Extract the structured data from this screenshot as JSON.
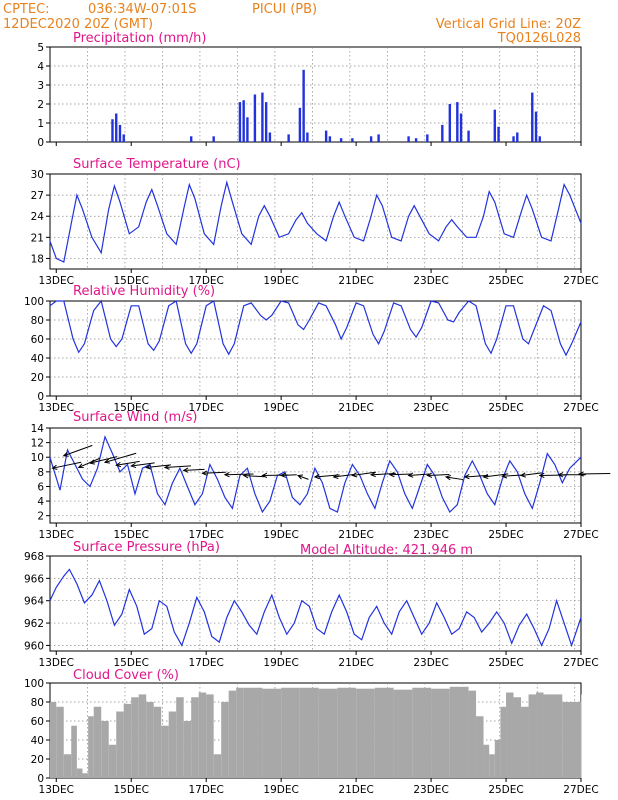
{
  "header": {
    "source": "CPTEC:",
    "coords": "036:34W-07:01S",
    "station": "PICUI (PB)",
    "init_time": "12DEC2020 20Z (GMT)",
    "grid_note": "Vertical Grid Line: 20Z",
    "model_code": "TQ0126L028",
    "model_altitude": "Model Altitude: 421.946 m"
  },
  "colors": {
    "header": "#e8821f",
    "title": "#e0168a",
    "line": "#2233dd",
    "bar": "#2233dd",
    "cloud": "#a8a8a8",
    "arrow": "#000000"
  },
  "x_axis": {
    "start_day": 12.833,
    "end_day": 27.0,
    "tick_days": [
      13,
      15,
      17,
      19,
      21,
      23,
      25,
      27
    ],
    "tick_labels": [
      "13DEC",
      "15DEC",
      "17DEC",
      "19DEC",
      "21DEC",
      "23DEC",
      "25DEC",
      "27DEC"
    ],
    "grid_days": [
      12.833,
      13.833,
      14.833,
      15.833,
      16.833,
      17.833,
      18.833,
      19.833,
      20.833,
      21.833,
      22.833,
      23.833,
      24.833,
      25.833,
      26.833
    ]
  },
  "chart_data": [
    {
      "id": "precip",
      "type": "bar",
      "title": "Precipitation (mm/h)",
      "ylim": [
        0,
        5
      ],
      "yticks": [
        0,
        1,
        2,
        3,
        4,
        5
      ],
      "x": [
        14.5,
        14.6,
        14.7,
        14.8,
        16.6,
        17.2,
        17.9,
        18.0,
        18.1,
        18.3,
        18.5,
        18.6,
        18.7,
        19.2,
        19.5,
        19.6,
        19.7,
        20.2,
        20.3,
        20.6,
        20.9,
        21.4,
        21.6,
        22.4,
        22.6,
        22.9,
        23.3,
        23.5,
        23.7,
        23.8,
        24.0,
        24.7,
        24.8,
        25.2,
        25.3,
        25.7,
        25.8,
        25.9
      ],
      "values": [
        1.2,
        1.5,
        0.9,
        0.4,
        0.3,
        0.3,
        2.1,
        2.2,
        1.3,
        2.5,
        2.6,
        2.1,
        0.5,
        0.4,
        1.8,
        3.8,
        0.5,
        0.6,
        0.3,
        0.2,
        0.2,
        0.3,
        0.4,
        0.3,
        0.2,
        0.4,
        0.9,
        2.0,
        2.1,
        1.5,
        0.6,
        1.7,
        0.8,
        0.3,
        0.5,
        2.6,
        1.6,
        0.3
      ]
    },
    {
      "id": "temp",
      "type": "line",
      "title": "Surface Temperature (nC)",
      "ylim": [
        16.5,
        30
      ],
      "yticks": [
        18,
        21,
        24,
        27,
        30
      ],
      "x": [
        12.83,
        13.0,
        13.2,
        13.4,
        13.55,
        13.7,
        13.95,
        14.2,
        14.4,
        14.55,
        14.7,
        14.95,
        15.2,
        15.4,
        15.55,
        15.7,
        15.95,
        16.2,
        16.4,
        16.55,
        16.7,
        16.95,
        17.2,
        17.4,
        17.55,
        17.7,
        17.95,
        18.2,
        18.4,
        18.55,
        18.7,
        18.95,
        19.2,
        19.4,
        19.55,
        19.7,
        19.95,
        20.2,
        20.4,
        20.55,
        20.7,
        20.95,
        21.2,
        21.4,
        21.55,
        21.7,
        21.95,
        22.2,
        22.4,
        22.55,
        22.7,
        22.95,
        23.2,
        23.4,
        23.55,
        23.7,
        23.95,
        24.2,
        24.4,
        24.55,
        24.7,
        24.95,
        25.2,
        25.4,
        25.55,
        25.7,
        25.95,
        26.2,
        26.4,
        26.55,
        26.7,
        27.0
      ],
      "values": [
        20.5,
        18.0,
        17.5,
        23.0,
        27.0,
        25.0,
        21.0,
        18.8,
        25.0,
        28.3,
        26.0,
        21.5,
        22.5,
        26.0,
        27.8,
        25.5,
        21.5,
        20.0,
        25.0,
        28.5,
        26.5,
        21.5,
        20.0,
        25.5,
        28.8,
        26.0,
        21.5,
        20.0,
        24.0,
        25.5,
        24.0,
        21.0,
        21.5,
        23.5,
        24.5,
        23.0,
        21.5,
        20.5,
        24.0,
        26.0,
        24.0,
        21.0,
        20.5,
        24.0,
        27.0,
        25.5,
        21.0,
        20.5,
        24.0,
        25.5,
        24.0,
        21.5,
        20.5,
        22.5,
        23.5,
        22.5,
        21.0,
        21.0,
        24.0,
        27.5,
        26.0,
        21.5,
        21.0,
        24.5,
        27.0,
        25.0,
        21.0,
        20.5,
        25.0,
        28.5,
        27.0,
        23.0
      ]
    },
    {
      "id": "rh",
      "type": "line",
      "title": "Relative Humidity (%)",
      "ylim": [
        0,
        100
      ],
      "yticks": [
        0,
        20,
        40,
        60,
        80,
        100
      ],
      "x": [
        12.83,
        13.0,
        13.2,
        13.45,
        13.6,
        13.75,
        14.0,
        14.2,
        14.45,
        14.6,
        14.75,
        15.0,
        15.2,
        15.45,
        15.6,
        15.75,
        16.0,
        16.2,
        16.45,
        16.6,
        16.75,
        17.0,
        17.2,
        17.45,
        17.6,
        17.75,
        18.0,
        18.2,
        18.45,
        18.6,
        18.75,
        19.0,
        19.2,
        19.45,
        19.6,
        19.75,
        20.0,
        20.2,
        20.45,
        20.6,
        20.75,
        21.0,
        21.2,
        21.45,
        21.6,
        21.75,
        22.0,
        22.2,
        22.45,
        22.6,
        22.75,
        23.0,
        23.2,
        23.45,
        23.6,
        23.75,
        24.0,
        24.2,
        24.45,
        24.6,
        24.75,
        25.0,
        25.2,
        25.45,
        25.6,
        25.75,
        26.0,
        26.2,
        26.45,
        26.6,
        26.75,
        27.0
      ],
      "values": [
        95,
        100,
        100,
        60,
        46,
        55,
        90,
        100,
        60,
        52,
        60,
        95,
        95,
        55,
        48,
        58,
        95,
        100,
        55,
        45,
        55,
        95,
        100,
        55,
        44,
        55,
        95,
        98,
        85,
        80,
        85,
        100,
        98,
        75,
        70,
        80,
        98,
        95,
        75,
        60,
        72,
        98,
        95,
        65,
        55,
        68,
        98,
        95,
        70,
        62,
        72,
        100,
        98,
        80,
        78,
        88,
        100,
        95,
        55,
        45,
        60,
        95,
        95,
        60,
        55,
        70,
        95,
        90,
        55,
        43,
        55,
        78
      ]
    },
    {
      "id": "wind",
      "type": "line",
      "title": "Surface Wind (m/s)",
      "ylim": [
        1,
        14
      ],
      "yticks": [
        2,
        4,
        6,
        8,
        10,
        12,
        14
      ],
      "x": [
        12.83,
        12.95,
        13.1,
        13.3,
        13.5,
        13.7,
        13.9,
        14.1,
        14.3,
        14.5,
        14.7,
        14.9,
        15.1,
        15.3,
        15.5,
        15.7,
        15.9,
        16.1,
        16.3,
        16.5,
        16.7,
        16.9,
        17.1,
        17.3,
        17.5,
        17.7,
        17.9,
        18.1,
        18.3,
        18.5,
        18.7,
        18.9,
        19.1,
        19.3,
        19.5,
        19.7,
        19.9,
        20.1,
        20.3,
        20.5,
        20.7,
        20.9,
        21.1,
        21.3,
        21.5,
        21.7,
        21.9,
        22.1,
        22.3,
        22.5,
        22.7,
        22.9,
        23.1,
        23.3,
        23.5,
        23.7,
        23.9,
        24.1,
        24.3,
        24.5,
        24.7,
        24.9,
        25.1,
        25.3,
        25.5,
        25.7,
        25.9,
        26.1,
        26.3,
        26.5,
        26.7,
        27.0
      ],
      "values": [
        10.0,
        8.0,
        5.5,
        11.0,
        9.0,
        7.0,
        6.0,
        8.5,
        12.8,
        10.5,
        8.0,
        9.0,
        5.0,
        8.5,
        9.0,
        5.0,
        3.5,
        6.5,
        8.5,
        6.0,
        3.5,
        5.0,
        9.0,
        7.0,
        4.5,
        3.0,
        7.5,
        8.5,
        5.0,
        2.5,
        4.0,
        7.5,
        8.0,
        4.5,
        3.5,
        5.0,
        8.5,
        6.5,
        3.0,
        2.5,
        6.5,
        9.0,
        7.5,
        5.0,
        3.0,
        6.5,
        9.5,
        8.0,
        5.0,
        3.0,
        6.0,
        9.0,
        7.5,
        4.5,
        2.5,
        3.5,
        7.5,
        9.5,
        7.5,
        5.0,
        3.5,
        7.0,
        9.5,
        8.0,
        5.0,
        3.0,
        6.5,
        10.5,
        9.0,
        6.5,
        8.5,
        10.0
      ],
      "arrows": [
        {
          "x": 12.9,
          "y": 8.5,
          "u": 11.0,
          "v": 2.3
        },
        {
          "x": 13.2,
          "y": 10.2,
          "u": 11.0,
          "v": 4.0
        },
        {
          "x": 13.6,
          "y": 8.6,
          "u": 8.0,
          "v": 3.5
        },
        {
          "x": 13.9,
          "y": 9.2,
          "u": 10.5,
          "v": 2.5
        },
        {
          "x": 14.3,
          "y": 9.3,
          "u": 12.0,
          "v": 3.5
        },
        {
          "x": 14.6,
          "y": 8.9,
          "u": 9.0,
          "v": 1.5
        },
        {
          "x": 15.0,
          "y": 8.8,
          "u": 9.0,
          "v": 1.2
        },
        {
          "x": 15.4,
          "y": 8.6,
          "u": 9.5,
          "v": 1.0
        },
        {
          "x": 15.9,
          "y": 8.6,
          "u": 10.0,
          "v": 0.6
        },
        {
          "x": 16.4,
          "y": 8.2,
          "u": 8.0,
          "v": 0.4
        },
        {
          "x": 16.9,
          "y": 7.8,
          "u": 9.0,
          "v": 0.4
        },
        {
          "x": 17.5,
          "y": 7.6,
          "u": 11.0,
          "v": 0.3
        },
        {
          "x": 18.0,
          "y": 7.5,
          "u": 8.0,
          "v": -0.5
        },
        {
          "x": 18.5,
          "y": 7.5,
          "u": 10.0,
          "v": 0.2
        },
        {
          "x": 19.0,
          "y": 7.5,
          "u": 6.0,
          "v": 0.3
        },
        {
          "x": 19.45,
          "y": 7.5,
          "u": 4.0,
          "v": -1.5
        },
        {
          "x": 19.9,
          "y": 7.3,
          "u": 9.5,
          "v": 0.8
        },
        {
          "x": 20.4,
          "y": 7.3,
          "u": 8.0,
          "v": 1.0
        },
        {
          "x": 20.9,
          "y": 7.5,
          "u": 9.0,
          "v": 1.3
        },
        {
          "x": 21.4,
          "y": 7.6,
          "u": 9.5,
          "v": 0.5
        },
        {
          "x": 21.9,
          "y": 7.6,
          "u": 8.5,
          "v": 0.3
        },
        {
          "x": 22.4,
          "y": 7.5,
          "u": 8.0,
          "v": 0.6
        },
        {
          "x": 22.9,
          "y": 7.5,
          "u": 8.5,
          "v": 0.4
        },
        {
          "x": 23.4,
          "y": 7.3,
          "u": 6.5,
          "v": -1.0
        },
        {
          "x": 23.9,
          "y": 7.3,
          "u": 9.0,
          "v": 0.6
        },
        {
          "x": 24.4,
          "y": 7.3,
          "u": 9.5,
          "v": 1.2
        },
        {
          "x": 24.9,
          "y": 7.4,
          "u": 8.5,
          "v": 0.5
        },
        {
          "x": 25.4,
          "y": 7.5,
          "u": 8.0,
          "v": 1.0
        },
        {
          "x": 25.9,
          "y": 7.5,
          "u": 10.0,
          "v": 0.2
        },
        {
          "x": 26.4,
          "y": 7.6,
          "u": 10.5,
          "v": 0.0
        },
        {
          "x": 26.95,
          "y": 7.7,
          "u": 12.0,
          "v": 0.2
        }
      ]
    },
    {
      "id": "pressure",
      "type": "line",
      "title": "Surface Pressure (hPa)",
      "ylim": [
        959.5,
        968
      ],
      "yticks": [
        960,
        962,
        964,
        966,
        968
      ],
      "x": [
        12.83,
        13.0,
        13.2,
        13.35,
        13.55,
        13.75,
        13.95,
        14.15,
        14.35,
        14.55,
        14.75,
        14.95,
        15.15,
        15.35,
        15.55,
        15.75,
        15.95,
        16.15,
        16.35,
        16.55,
        16.75,
        16.95,
        17.15,
        17.35,
        17.55,
        17.75,
        17.95,
        18.15,
        18.35,
        18.55,
        18.75,
        18.95,
        19.15,
        19.35,
        19.55,
        19.75,
        19.95,
        20.15,
        20.35,
        20.55,
        20.75,
        20.95,
        21.15,
        21.35,
        21.55,
        21.75,
        21.95,
        22.15,
        22.35,
        22.55,
        22.75,
        22.95,
        23.15,
        23.35,
        23.55,
        23.75,
        23.95,
        24.15,
        24.35,
        24.55,
        24.75,
        24.95,
        25.15,
        25.35,
        25.55,
        25.75,
        25.95,
        26.15,
        26.35,
        26.55,
        26.75,
        27.0
      ],
      "values": [
        964.0,
        965.2,
        966.2,
        966.8,
        965.5,
        963.8,
        964.5,
        965.8,
        964.0,
        961.8,
        962.8,
        965.0,
        963.5,
        961.0,
        961.5,
        964.0,
        963.5,
        961.2,
        960.0,
        962.0,
        964.3,
        963.0,
        960.8,
        960.3,
        962.5,
        964.0,
        963.0,
        961.8,
        961.0,
        963.0,
        964.5,
        962.5,
        961.0,
        962.0,
        964.0,
        963.5,
        961.5,
        961.0,
        963.0,
        964.5,
        963.0,
        961.0,
        960.5,
        962.5,
        963.5,
        962.0,
        961.0,
        963.0,
        964.0,
        962.5,
        961.0,
        962.0,
        963.8,
        962.5,
        961.0,
        961.5,
        963.0,
        962.5,
        961.2,
        962.0,
        963.0,
        962.0,
        960.2,
        961.8,
        962.8,
        961.5,
        960.0,
        961.5,
        964.0,
        962.0,
        960.0,
        962.5
      ]
    },
    {
      "id": "cloud",
      "type": "bar",
      "title": "Cloud Cover (%)",
      "ylim": [
        0,
        100
      ],
      "yticks": [
        0,
        20,
        40,
        60,
        80,
        100
      ],
      "x": [
        12.83,
        13.0,
        13.2,
        13.4,
        13.55,
        13.7,
        13.85,
        14.0,
        14.2,
        14.4,
        14.6,
        14.8,
        15.0,
        15.2,
        15.4,
        15.6,
        15.8,
        16.0,
        16.2,
        16.4,
        16.6,
        16.8,
        17.0,
        17.2,
        17.4,
        17.6,
        17.8,
        18.0,
        18.5,
        19.0,
        19.5,
        20.0,
        20.5,
        21.0,
        21.5,
        22.0,
        22.5,
        23.0,
        23.5,
        24.0,
        24.2,
        24.4,
        24.55,
        24.7,
        24.85,
        25.0,
        25.2,
        25.4,
        25.6,
        25.8,
        26.0,
        26.5,
        27.0
      ],
      "values": [
        80,
        75,
        25,
        55,
        10,
        5,
        65,
        75,
        60,
        35,
        70,
        78,
        85,
        88,
        80,
        75,
        55,
        70,
        85,
        60,
        85,
        90,
        88,
        25,
        80,
        92,
        95,
        95,
        94,
        95,
        95,
        94,
        95,
        94,
        95,
        93,
        95,
        94,
        96,
        92,
        65,
        35,
        25,
        40,
        75,
        90,
        85,
        75,
        88,
        90,
        88,
        80,
        88
      ]
    }
  ]
}
